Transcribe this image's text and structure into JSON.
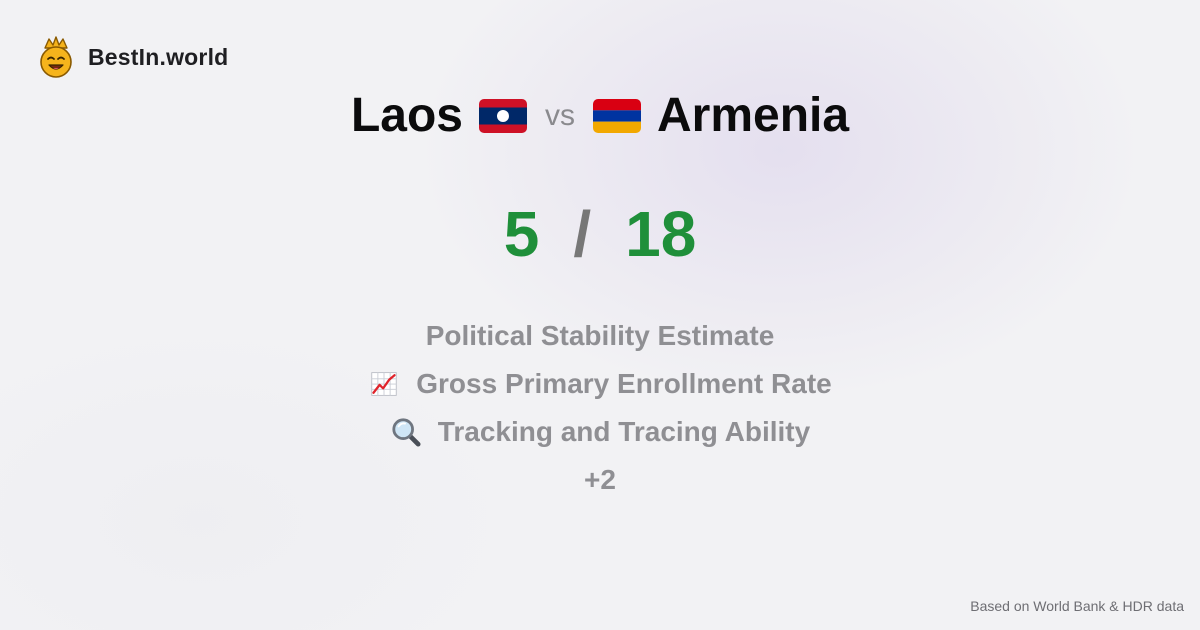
{
  "brand": {
    "name": "BestIn.world",
    "icon": "crown-smiley-icon"
  },
  "comparison": {
    "left_country": "Laos",
    "vs_label": "vs",
    "right_country": "Armenia",
    "left_flag": "laos-flag-icon",
    "right_flag": "armenia-flag-icon"
  },
  "scores": {
    "left": "5",
    "separator": "/",
    "right": "18"
  },
  "metrics": [
    {
      "label": "Political Stability Estimate",
      "icon": ""
    },
    {
      "label": "Gross Primary Enrollment Rate",
      "icon": "chart-increasing-icon"
    },
    {
      "label": "Tracking and Tracing Ability",
      "icon": "magnifying-glass-icon"
    },
    {
      "label": "+2",
      "icon": ""
    }
  ],
  "footer": {
    "source": "Based on World Bank & HDR data"
  },
  "colors": {
    "score_green": "#1f8f3a",
    "muted_text": "#8f8f93",
    "background": "#f2f2f4"
  }
}
